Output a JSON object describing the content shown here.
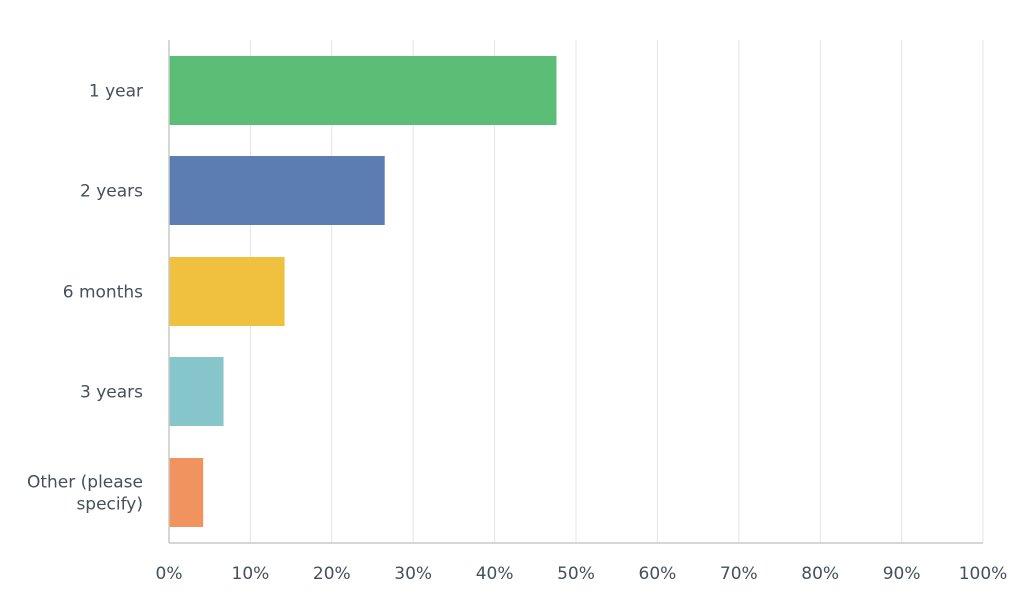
{
  "chart_data": {
    "type": "bar",
    "orientation": "horizontal",
    "categories": [
      "1 year",
      "2 years",
      "6 months",
      "3 years",
      "Other (please specify)"
    ],
    "category_lines": [
      [
        "1 year"
      ],
      [
        "2 years"
      ],
      [
        "6 months"
      ],
      [
        "3 years"
      ],
      [
        "Other (please",
        "specify)"
      ]
    ],
    "values": [
      47.6,
      26.5,
      14.2,
      6.7,
      4.2
    ],
    "colors": [
      "#5bbd76",
      "#5b7db1",
      "#efc13f",
      "#86c6cb",
      "#f0935f"
    ],
    "x_ticks": [
      "0%",
      "10%",
      "20%",
      "30%",
      "40%",
      "50%",
      "60%",
      "70%",
      "80%",
      "90%",
      "100%"
    ],
    "xlim": [
      0,
      100
    ],
    "unit": "%",
    "grid": true,
    "legend": "none",
    "title": "",
    "xlabel": "",
    "ylabel": ""
  }
}
